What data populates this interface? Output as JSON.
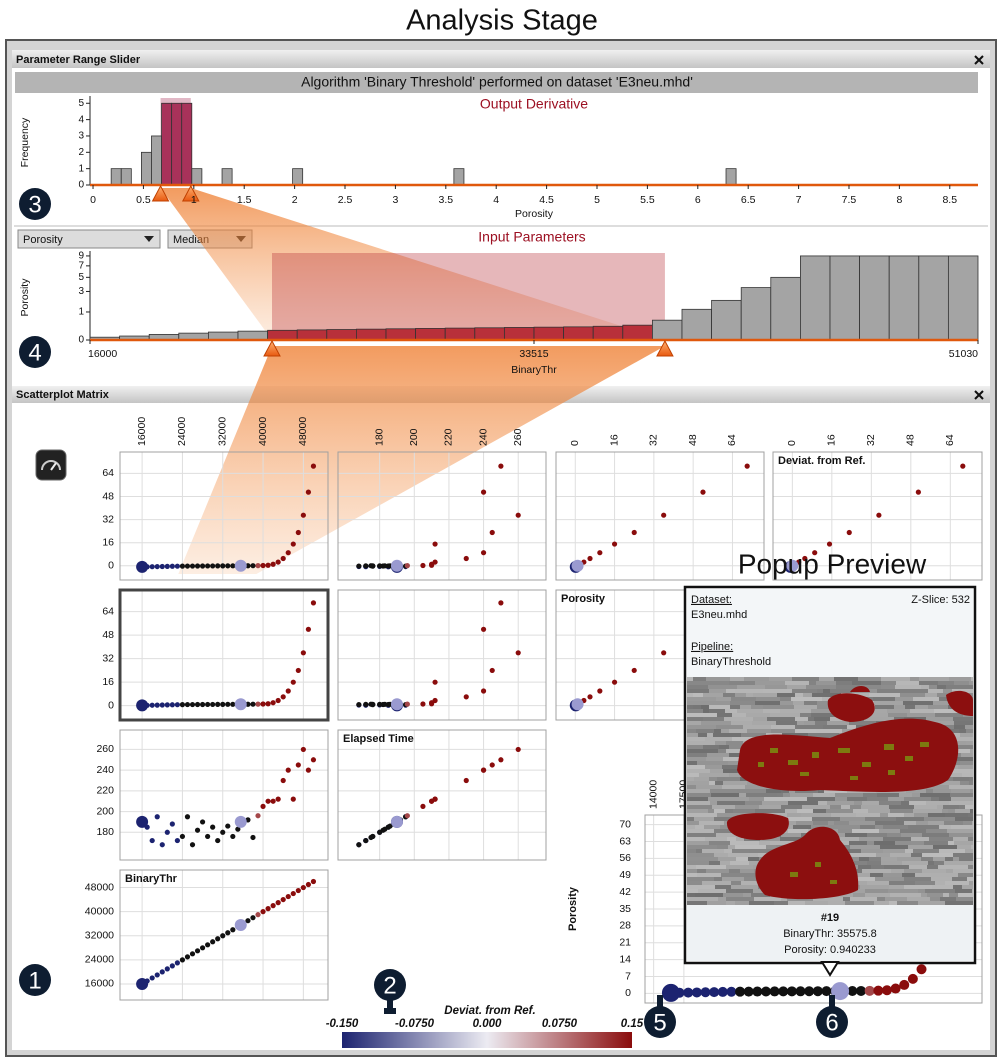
{
  "title": "Analysis Stage",
  "popup_label": "Popup Preview",
  "badges": [
    "1",
    "2",
    "3",
    "4",
    "5",
    "6"
  ],
  "range_slider": {
    "panel_title": "Parameter Range Slider",
    "banner": "Algorithm 'Binary Threshold' performed on dataset 'E3neu.mhd'",
    "dropdowns": [
      "Porosity",
      "Median"
    ],
    "output_chart": {
      "type": "histogram",
      "title": "Output Derivative",
      "xlabel": "Porosity",
      "ylabel": "Frequency",
      "bins": [
        0.18,
        0.28,
        0.38,
        0.48,
        0.58,
        0.68,
        0.78,
        0.88,
        0.98,
        1.08,
        1.18,
        1.28,
        1.38,
        1.48,
        1.58,
        1.68,
        1.78,
        1.88,
        1.98,
        2.08,
        2.18,
        2.28,
        2.38,
        2.48,
        2.58,
        2.68,
        2.78,
        2.88,
        2.98,
        3.08,
        3.18,
        3.28,
        3.38,
        3.48,
        3.58,
        3.68,
        3.78,
        3.88,
        3.98,
        4.08,
        4.18,
        4.28,
        4.38,
        4.48,
        4.58,
        4.68,
        4.78,
        4.88,
        4.98,
        5.08,
        5.18,
        5.28,
        5.38,
        5.48,
        5.58,
        5.68,
        5.78,
        5.88,
        5.98,
        6.08,
        6.18,
        6.28,
        6.38
      ],
      "values": [
        1,
        1,
        0,
        2,
        3,
        5,
        5,
        5,
        1,
        0,
        0,
        1,
        0,
        0,
        0,
        0,
        0,
        0,
        1,
        0,
        0,
        0,
        0,
        0,
        0,
        0,
        0,
        0,
        0,
        0,
        0,
        0,
        0,
        0,
        1,
        0,
        0,
        0,
        0,
        0,
        0,
        0,
        0,
        0,
        0,
        0,
        0,
        0,
        0,
        0,
        0,
        0,
        0,
        0,
        0,
        0,
        0,
        0,
        0,
        0,
        0,
        1
      ],
      "selection": [
        0.67,
        0.97
      ],
      "xlim": [
        -0.03,
        8.78
      ],
      "xticks": [
        0,
        0.5,
        1,
        1.5,
        2,
        2.5,
        3,
        3.5,
        4,
        4.5,
        5,
        5.5,
        6,
        6.5,
        7,
        7.5,
        8,
        8.5
      ],
      "ylim": [
        0,
        5.2
      ],
      "yticks": [
        0,
        1,
        2,
        3,
        4,
        5
      ],
      "color": "#a4a4a4",
      "selected_color": "#a8325a"
    },
    "input_title": "Input Parameters",
    "input_chart": {
      "type": "histogram",
      "xlabel": "BinaryThr",
      "ylabel": "Porosity",
      "bins": [
        16000,
        17168,
        18335,
        19503,
        20671,
        21838,
        23006,
        24174,
        25341,
        26509,
        27677,
        28844,
        30012,
        31180,
        32347,
        33515,
        34683,
        35850,
        37018,
        38186,
        39353,
        40521,
        41689,
        42856,
        44024,
        45192,
        46359,
        47527,
        48695,
        49862,
        51030
      ],
      "values": [
        0.01,
        0.02,
        0.04,
        0.06,
        0.08,
        0.1,
        0.12,
        0.13,
        0.14,
        0.15,
        0.16,
        0.17,
        0.18,
        0.19,
        0.2,
        0.21,
        0.22,
        0.24,
        0.28,
        0.5,
        1.2,
        2,
        3.5,
        5,
        9,
        9,
        9,
        9,
        9,
        9
      ],
      "selection": [
        23180,
        38680
      ],
      "xlim": [
        16000,
        51030
      ],
      "xticks": [
        16000,
        33515,
        51030
      ],
      "ylim": [
        0,
        9.2
      ],
      "yticks": [
        0,
        1,
        3,
        5,
        7,
        9
      ],
      "yscale": "sqrt",
      "color": "#a4a4a4",
      "selected_color": "#b8303a"
    }
  },
  "scatter_matrix": {
    "panel_title": "Scatterplot Matrix",
    "reference": 20,
    "large_points": [
      0,
      20
    ],
    "selected_cell": [
      1,
      0
    ],
    "point_colors": {
      "selected": "#111111",
      "reference": "#9a9ad0"
    },
    "variables": [
      {
        "name": "BinaryThr",
        "lim": [
          13000,
          51500
        ],
        "ticks": [
          16000,
          24000,
          32000,
          40000,
          48000
        ],
        "values": [
          16000,
          17000,
          18000,
          19000,
          20000,
          21000,
          22000,
          23000,
          24000,
          25000,
          26000,
          27000,
          28000,
          29000,
          30000,
          31000,
          32000,
          33000,
          34000,
          35000,
          35575.8,
          36000,
          37000,
          38000,
          39000,
          40000,
          41000,
          42000,
          43000,
          44000,
          45000,
          46000,
          47000,
          48000,
          49000,
          50000
        ]
      },
      {
        "name": "Elapsed Time",
        "lim": [
          160,
          272
        ],
        "ticks": [
          180,
          200,
          220,
          240,
          260
        ],
        "values": [
          190,
          185,
          172,
          195,
          168,
          180,
          188,
          172,
          176,
          195,
          168,
          182,
          190,
          176,
          185,
          172,
          180,
          186,
          176,
          183,
          190,
          188,
          192,
          175,
          196,
          205,
          210,
          210,
          212,
          230,
          240,
          212,
          245,
          260,
          240,
          250
        ]
      },
      {
        "name": "Porosity",
        "lim": [
          -5,
          74
        ],
        "ticks": [
          0,
          16,
          32,
          48,
          64
        ],
        "values": [
          0.2,
          0.25,
          0.3,
          0.38,
          0.45,
          0.52,
          0.6,
          0.66,
          0.7,
          0.73,
          0.76,
          0.78,
          0.8,
          0.82,
          0.84,
          0.86,
          0.88,
          0.9,
          0.92,
          0.93,
          0.940233,
          0.95,
          0.97,
          1.0,
          1.05,
          1.12,
          1.3,
          2,
          3.5,
          6,
          10,
          16,
          24,
          36,
          52,
          70
        ]
      },
      {
        "name": "Deviat. from Ref.",
        "lim": [
          -5,
          74
        ],
        "ticks": [
          0,
          16,
          32,
          48,
          64
        ],
        "values": [
          -0.74,
          -0.69,
          -0.64,
          -0.56,
          -0.49,
          -0.42,
          -0.34,
          -0.28,
          -0.24,
          -0.21,
          -0.18,
          -0.16,
          -0.14,
          -0.12,
          -0.1,
          -0.08,
          -0.06,
          -0.04,
          -0.02,
          -0.01,
          0,
          0.01,
          0.03,
          0.06,
          0.11,
          0.18,
          0.36,
          1.06,
          2.56,
          5.06,
          9.06,
          15.06,
          23.06,
          35.06,
          51.06,
          69.06
        ]
      }
    ],
    "colorbar": {
      "title": "Deviat. from Ref.",
      "lim": [
        -0.15,
        0.15
      ],
      "ticks": [
        {
          "value": -0.15,
          "label": "-0.150"
        },
        {
          "value": -0.075,
          "label": "-0.0750"
        },
        {
          "value": 0,
          "label": "0.000"
        },
        {
          "value": 0.075,
          "label": "0.0750"
        },
        {
          "value": 0.15,
          "label": "0.15"
        }
      ],
      "colors": [
        "#1c2370",
        "#ecebf2",
        "#8a0c0c"
      ]
    },
    "zoom": {
      "ylabel": "Porosity",
      "x_variable": 0,
      "y_variable": 2,
      "xlim": [
        13000,
        52000
      ],
      "xticks": [
        14000,
        17500
      ],
      "ylim": [
        -4,
        74
      ],
      "yticks": [
        0,
        7,
        14,
        21,
        28,
        35,
        42,
        49,
        56,
        63,
        70
      ]
    }
  },
  "popup": {
    "dataset_label": "Dataset:",
    "dataset": "E3neu.mhd",
    "pipeline_label": "Pipeline:",
    "pipeline": "BinaryThreshold",
    "z_slice": "Z-Slice: 532",
    "id": "#19",
    "lines": [
      "BinaryThr: 35575.8",
      "Porosity: 0.940233"
    ]
  }
}
